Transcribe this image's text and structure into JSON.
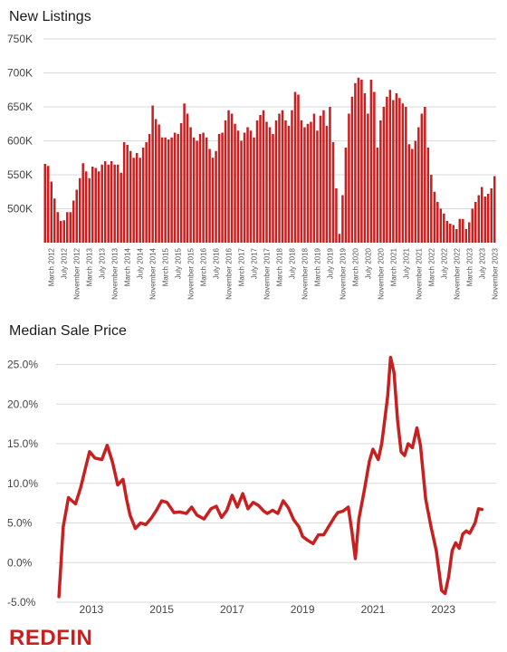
{
  "brand": {
    "logo_text": "REDFIN",
    "color": "#c82021"
  },
  "chart_data": [
    {
      "type": "bar",
      "title": "New Listings",
      "color": "#c82021",
      "ylim": [
        450000,
        750000
      ],
      "yticks": [
        500000,
        550000,
        600000,
        650000,
        700000,
        750000
      ],
      "ytick_labels": [
        "500K",
        "550K",
        "600K",
        "650K",
        "700K",
        "750K"
      ],
      "start": "2012-01",
      "xtick_labels": [
        "March 2012",
        "July 2012",
        "November 2012",
        "March 2013",
        "July 2013",
        "November 2013",
        "March 2014",
        "July 2014",
        "November 2014",
        "March 2015",
        "July 2015",
        "November 2015",
        "March 2016",
        "July 2016",
        "November 2016",
        "March 2017",
        "July 2017",
        "November 2017",
        "March 2018",
        "July 2018",
        "November 2018",
        "March 2019",
        "July 2019",
        "November 2019",
        "March 2020",
        "July 2020",
        "November 2020",
        "March 2021",
        "July 2021",
        "November 2021",
        "March 2022",
        "July 2022",
        "November 2022",
        "March 2023",
        "July 2023",
        "November 2023"
      ],
      "values": [
        566000,
        563000,
        540000,
        515000,
        495000,
        482000,
        483000,
        495000,
        495000,
        512000,
        528000,
        545000,
        567000,
        555000,
        545000,
        562000,
        560000,
        555000,
        565000,
        570000,
        565000,
        570000,
        565000,
        565000,
        553000,
        598000,
        594000,
        585000,
        575000,
        582000,
        575000,
        590000,
        598000,
        610000,
        652000,
        632000,
        624000,
        605000,
        605000,
        602000,
        605000,
        612000,
        610000,
        626000,
        655000,
        640000,
        620000,
        605000,
        600000,
        610000,
        612000,
        605000,
        588000,
        575000,
        585000,
        610000,
        612000,
        630000,
        645000,
        640000,
        625000,
        615000,
        600000,
        612000,
        620000,
        615000,
        605000,
        630000,
        638000,
        645000,
        628000,
        620000,
        610000,
        630000,
        640000,
        645000,
        630000,
        622000,
        645000,
        672000,
        668000,
        630000,
        620000,
        625000,
        628000,
        640000,
        615000,
        637000,
        645000,
        622000,
        650000,
        598000,
        530000,
        463000,
        520000,
        590000,
        640000,
        665000,
        685000,
        693000,
        690000,
        670000,
        640000,
        690000,
        672000,
        590000,
        630000,
        650000,
        665000,
        675000,
        660000,
        670000,
        663000,
        655000,
        650000,
        595000,
        588000,
        600000,
        620000,
        640000,
        650000,
        590000,
        550000,
        525000,
        510000,
        500000,
        493000,
        482000,
        478000,
        476000,
        470000,
        485000,
        485000,
        470000,
        480000,
        500000,
        510000,
        520000,
        532000,
        518000,
        522000,
        530000,
        548000
      ]
    },
    {
      "type": "line",
      "title": "Median Sale Price",
      "color": "#c82021",
      "ylim": [
        -5,
        27
      ],
      "yticks": [
        -5,
        0,
        5,
        10,
        15,
        20,
        25
      ],
      "ytick_labels": [
        "-5.0%",
        "0.0%",
        "5.0%",
        "10.0%",
        "15.0%",
        "20.0%",
        "25.0%"
      ],
      "xlim": [
        2012.0,
        2024.5
      ],
      "xticks": [
        2013,
        2015,
        2017,
        2019,
        2021,
        2023
      ],
      "xtick_labels": [
        "2013",
        "2015",
        "2017",
        "2019",
        "2021",
        "2023"
      ],
      "x": [
        2012.08,
        2012.2,
        2012.35,
        2012.55,
        2012.7,
        2012.85,
        2012.95,
        2013.1,
        2013.3,
        2013.45,
        2013.6,
        2013.75,
        2013.9,
        2014.0,
        2014.1,
        2014.25,
        2014.4,
        2014.55,
        2014.7,
        2014.85,
        2015.0,
        2015.15,
        2015.35,
        2015.5,
        2015.7,
        2015.85,
        2016.0,
        2016.2,
        2016.4,
        2016.55,
        2016.7,
        2016.85,
        2017.0,
        2017.15,
        2017.3,
        2017.45,
        2017.6,
        2017.75,
        2017.9,
        2018.0,
        2018.15,
        2018.3,
        2018.45,
        2018.6,
        2018.75,
        2018.9,
        2019.0,
        2019.15,
        2019.3,
        2019.45,
        2019.6,
        2019.75,
        2019.9,
        2020.0,
        2020.15,
        2020.3,
        2020.4,
        2020.5,
        2020.6,
        2020.75,
        2020.9,
        2021.0,
        2021.15,
        2021.25,
        2021.32,
        2021.42,
        2021.5,
        2021.6,
        2021.7,
        2021.8,
        2021.9,
        2022.0,
        2022.12,
        2022.25,
        2022.35,
        2022.5,
        2022.65,
        2022.8,
        2022.95,
        2023.05,
        2023.15,
        2023.25,
        2023.35,
        2023.45,
        2023.55,
        2023.65,
        2023.75,
        2023.9,
        2024.0,
        2024.1
      ],
      "y": [
        -4.3,
        4.5,
        8.2,
        7.4,
        9.5,
        12.2,
        14.0,
        13.2,
        13.0,
        14.8,
        12.7,
        9.8,
        10.5,
        8.0,
        6.0,
        4.3,
        5.0,
        4.8,
        5.6,
        6.6,
        7.8,
        7.6,
        6.3,
        6.4,
        6.2,
        7.0,
        6.0,
        5.5,
        6.8,
        7.1,
        5.7,
        6.6,
        8.5,
        7.0,
        8.7,
        6.8,
        7.6,
        7.2,
        6.5,
        6.2,
        6.6,
        6.2,
        7.8,
        6.9,
        5.4,
        4.5,
        3.3,
        2.8,
        2.4,
        3.5,
        3.5,
        4.6,
        5.7,
        6.3,
        6.5,
        7.0,
        4.0,
        0.5,
        5.5,
        9.0,
        12.8,
        14.3,
        13.0,
        15.0,
        17.5,
        21.0,
        25.9,
        24.0,
        18.0,
        14.0,
        13.5,
        15.0,
        14.5,
        17.0,
        14.8,
        8.0,
        4.5,
        1.5,
        -3.5,
        -3.9,
        -1.8,
        1.5,
        2.5,
        1.8,
        3.6,
        4.0,
        3.7,
        5.0,
        6.8,
        6.7
      ]
    }
  ]
}
